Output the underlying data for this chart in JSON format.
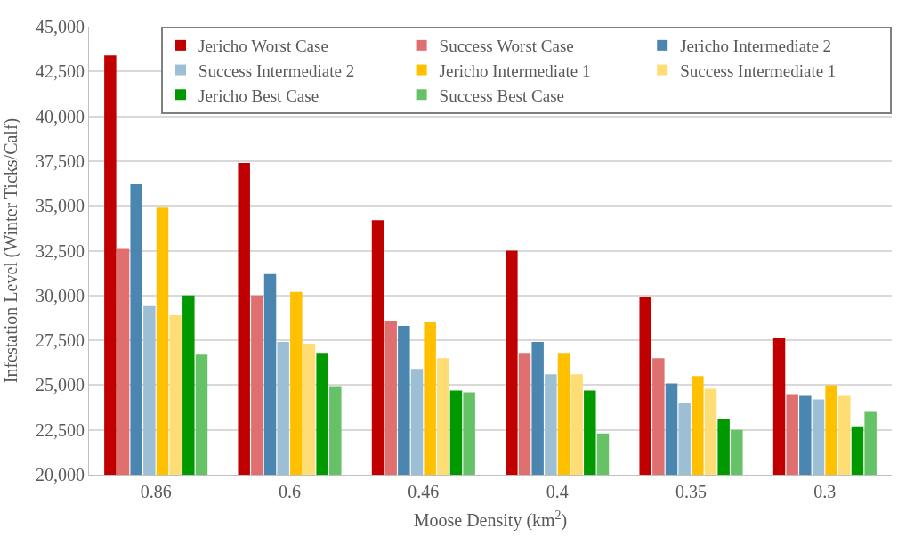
{
  "chart_data": {
    "type": "bar",
    "xlabel": "Moose Density (km$^{2}$)",
    "ylabel": "Infestation Level (Winter Ticks/Calf)",
    "categories": [
      "0.86",
      "0.6",
      "0.46",
      "0.4",
      "0.35",
      "0.3"
    ],
    "series": [
      {
        "name": "Jericho Worst Case",
        "color": "#c00000",
        "values": [
          43400,
          37400,
          34200,
          32500,
          29900,
          27600
        ]
      },
      {
        "name": "Success Worst Case",
        "color": "#e07070",
        "values": [
          32600,
          30000,
          28600,
          26800,
          26500,
          24500
        ]
      },
      {
        "name": "Jericho Intermediate 2",
        "color": "#4a86b0",
        "values": [
          36200,
          31200,
          28300,
          27400,
          25100,
          24400
        ]
      },
      {
        "name": "Success Intermediate 2",
        "color": "#9dbfd6",
        "values": [
          29400,
          27400,
          25900,
          25600,
          24000,
          24200
        ]
      },
      {
        "name": "Jericho Intermediate 1",
        "color": "#ffc000",
        "values": [
          34900,
          30200,
          28500,
          26800,
          25500,
          25000
        ]
      },
      {
        "name": "Success Intermediate 1",
        "color": "#ffdd75",
        "values": [
          28900,
          27300,
          26500,
          25600,
          24800,
          24400
        ]
      },
      {
        "name": "Jericho Best Case",
        "color": "#009900",
        "values": [
          30000,
          26800,
          24700,
          24700,
          23100,
          22700
        ]
      },
      {
        "name": "Success Best Case",
        "color": "#66c266",
        "values": [
          26700,
          24900,
          24600,
          22300,
          22500,
          23500
        ]
      }
    ],
    "ylim": [
      20000,
      45000
    ],
    "yticks": [
      {
        "value": 20000,
        "label": "20,000"
      },
      {
        "value": 22500,
        "label": "22,500"
      },
      {
        "value": 25000,
        "label": "25,000"
      },
      {
        "value": 27500,
        "label": "27,500"
      },
      {
        "value": 30000,
        "label": "30,000"
      },
      {
        "value": 32500,
        "label": "32,500"
      },
      {
        "value": 35000,
        "label": "35,000"
      },
      {
        "value": 37500,
        "label": "37,500"
      },
      {
        "value": 40000,
        "label": "40,000"
      },
      {
        "value": 42500,
        "label": "42,500"
      },
      {
        "value": 45000,
        "label": "45,000"
      }
    ],
    "grid": "y",
    "legend": "top right"
  }
}
